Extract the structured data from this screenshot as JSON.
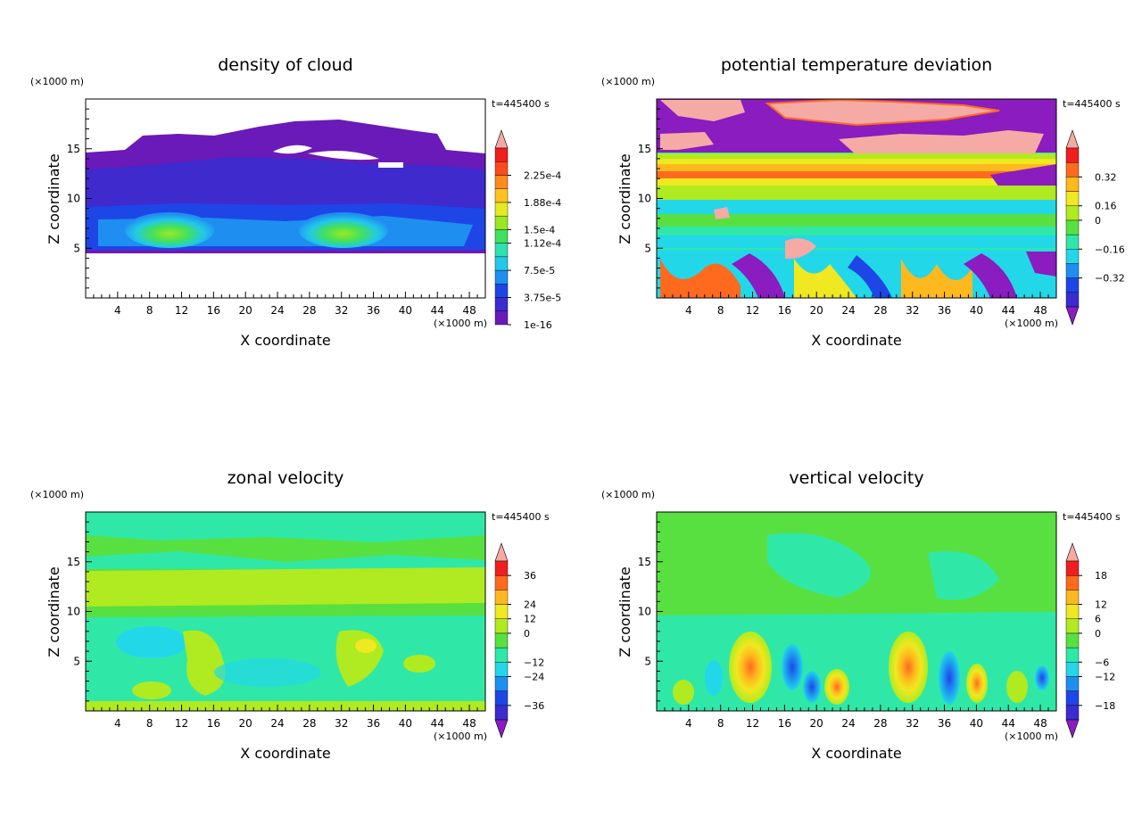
{
  "chart_data": [
    {
      "type": "heatmap",
      "title": "density of cloud",
      "xlabel": "X coordinate",
      "ylabel": "Z coordinate",
      "x_unit": "(×1000 m)",
      "y_unit": "(×1000 m)",
      "time_label": "t=445400 s",
      "xlim": [
        0,
        50
      ],
      "ylim": [
        0,
        20
      ],
      "xticks": [
        "4",
        "8",
        "12",
        "16",
        "20",
        "24",
        "28",
        "32",
        "36",
        "40",
        "44",
        "48"
      ],
      "yticks": [
        "5",
        "10",
        "15"
      ],
      "colorbar": {
        "labels": [
          "1e-16",
          "3.75e-5",
          "7.5e-5",
          "1.12e-4",
          "1.5e-4",
          "1.88e-4",
          "2.25e-4"
        ],
        "colors": [
          "#6a1ab8",
          "#3a2ccf",
          "#1e46e6",
          "#1e8ff0",
          "#22c8e8",
          "#2fe0b0",
          "#40e060",
          "#9be820",
          "#e6ea20",
          "#ffc21e",
          "#ff8a1e",
          "#ff4a1e",
          "#f01e1e"
        ],
        "over_color": "#f5aaa6",
        "under_color": null
      }
    },
    {
      "type": "heatmap",
      "title": "potential temperature deviation",
      "xlabel": "X coordinate",
      "ylabel": "Z coordinate",
      "x_unit": "(×1000 m)",
      "y_unit": "(×1000 m)",
      "time_label": "t=445400 s",
      "xlim": [
        0,
        50
      ],
      "ylim": [
        0,
        20
      ],
      "xticks": [
        "4",
        "8",
        "12",
        "16",
        "20",
        "24",
        "28",
        "32",
        "36",
        "40",
        "44",
        "48"
      ],
      "yticks": [
        "5",
        "10",
        "15"
      ],
      "colorbar": {
        "labels": [
          "−0.32",
          "−0.16",
          "0",
          "0.16",
          "0.32"
        ],
        "colors": [
          "#3a2ccf",
          "#1e46e6",
          "#1e8ff0",
          "#22d8e8",
          "#2fe8a8",
          "#58e040",
          "#b0ea20",
          "#f0e820",
          "#ffb81e",
          "#ff6a1e",
          "#f01e1e"
        ],
        "over_color": "#f5aaa6",
        "under_color": "#8a1cc0"
      }
    },
    {
      "type": "heatmap",
      "title": "zonal velocity",
      "xlabel": "X coordinate",
      "ylabel": "Z coordinate",
      "x_unit": "(×1000 m)",
      "y_unit": "(×1000 m)",
      "time_label": "t=445400 s",
      "xlim": [
        0,
        50
      ],
      "ylim": [
        0,
        20
      ],
      "xticks": [
        "4",
        "8",
        "12",
        "16",
        "20",
        "24",
        "28",
        "32",
        "36",
        "40",
        "44",
        "48"
      ],
      "yticks": [
        "5",
        "10",
        "15"
      ],
      "colorbar": {
        "labels": [
          "−36",
          "−24",
          "−12",
          "0",
          "12",
          "24",
          "36"
        ],
        "colors": [
          "#3a2ccf",
          "#1e46e6",
          "#1e8ff0",
          "#22d8e8",
          "#2fe8a8",
          "#58e040",
          "#b0ea20",
          "#f0e820",
          "#ffb81e",
          "#ff6a1e",
          "#f01e1e"
        ],
        "over_color": "#f5aaa6",
        "under_color": "#8a1cc0"
      }
    },
    {
      "type": "heatmap",
      "title": "vertical velocity",
      "xlabel": "X coordinate",
      "ylabel": "Z coordinate",
      "x_unit": "(×1000 m)",
      "y_unit": "(×1000 m)",
      "time_label": "t=445400 s",
      "xlim": [
        0,
        50
      ],
      "ylim": [
        0,
        20
      ],
      "xticks": [
        "4",
        "8",
        "12",
        "16",
        "20",
        "24",
        "28",
        "32",
        "36",
        "40",
        "44",
        "48"
      ],
      "yticks": [
        "5",
        "10",
        "15"
      ],
      "colorbar": {
        "labels": [
          "−18",
          "−12",
          "−6",
          "0",
          "6",
          "12",
          "18"
        ],
        "colors": [
          "#3a2ccf",
          "#1e46e6",
          "#1e8ff0",
          "#22d8e8",
          "#2fe8a8",
          "#58e040",
          "#b0ea20",
          "#f0e820",
          "#ffb81e",
          "#ff6a1e",
          "#f01e1e"
        ],
        "over_color": "#f5aaa6",
        "under_color": "#8a1cc0"
      }
    }
  ]
}
